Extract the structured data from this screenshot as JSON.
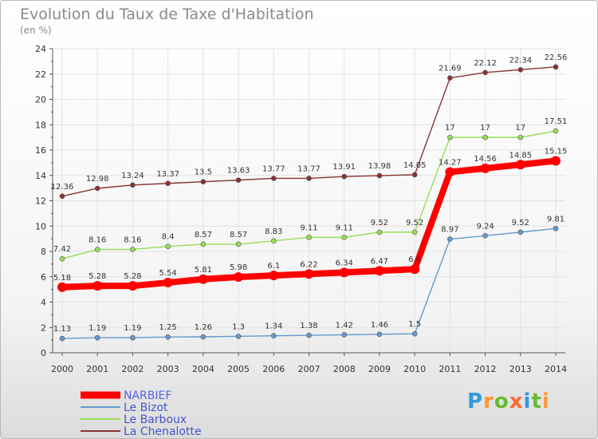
{
  "chart_data": {
    "type": "line",
    "title": "Evolution du Taux de Taxe d'Habitation",
    "subtitle": "(en %)",
    "x": [
      2000,
      2001,
      2002,
      2003,
      2004,
      2005,
      2006,
      2007,
      2008,
      2009,
      2010,
      2011,
      2012,
      2013,
      2014
    ],
    "ylim": [
      0,
      24
    ],
    "yticks": [
      0,
      2,
      4,
      6,
      8,
      10,
      12,
      14,
      16,
      18,
      20,
      22,
      24
    ],
    "grid": true,
    "legend": "bottom-left",
    "series": [
      {
        "name": "NARBIEF",
        "color": "#ff0000",
        "values": [
          5.18,
          5.28,
          5.28,
          5.54,
          5.81,
          5.98,
          6.1,
          6.22,
          6.34,
          6.47,
          6.6,
          14.27,
          14.56,
          14.85,
          15.15
        ],
        "labels": [
          "5.18",
          "5.28",
          "5.28",
          "5.54",
          "5.81",
          "5.98",
          "6.1",
          "6.22",
          "6.34",
          "6.47",
          "6.6",
          "14.27",
          "14.56",
          "14.85",
          "15.15"
        ]
      },
      {
        "name": "Le Bizot",
        "color": "#6699cc",
        "values": [
          1.13,
          1.19,
          1.19,
          1.25,
          1.26,
          1.3,
          1.34,
          1.38,
          1.42,
          1.46,
          1.5,
          8.97,
          9.24,
          9.52,
          9.81
        ],
        "labels": [
          "1.13",
          "1.19",
          "1.19",
          "1.25",
          "1.26",
          "1.3",
          "1.34",
          "1.38",
          "1.42",
          "1.46",
          "1.5",
          "8.97",
          "9.24",
          "9.52",
          "9.81"
        ]
      },
      {
        "name": "Le Barboux",
        "color": "#99dd55",
        "values": [
          7.42,
          8.16,
          8.16,
          8.4,
          8.57,
          8.57,
          8.83,
          9.11,
          9.11,
          9.52,
          9.52,
          17,
          17,
          17,
          17.51
        ],
        "labels": [
          "7.42",
          "8.16",
          "8.16",
          "8.4",
          "8.57",
          "8.57",
          "8.83",
          "9.11",
          "9.11",
          "9.52",
          "9.52",
          "17",
          "17",
          "17",
          "17.51"
        ]
      },
      {
        "name": "La Chenalotte",
        "color": "#883333",
        "values": [
          12.36,
          12.98,
          13.24,
          13.37,
          13.5,
          13.63,
          13.77,
          13.77,
          13.91,
          13.98,
          14.05,
          21.69,
          22.12,
          22.34,
          22.56
        ],
        "labels": [
          "12.36",
          "12.98",
          "13.24",
          "13.37",
          "13.5",
          "13.63",
          "13.77",
          "13.77",
          "13.91",
          "13.98",
          "14.05",
          "21.69",
          "22.12",
          "22.34",
          "22.56"
        ]
      }
    ]
  },
  "legend_items": [
    "NARBIEF",
    "Le Bizot",
    "Le Barboux",
    "La Chenalotte"
  ],
  "logo": {
    "text": "Proxiti",
    "letters": [
      "P",
      "r",
      "o",
      "x",
      "i",
      "t",
      "i"
    ],
    "colors": [
      "#3399dd",
      "#ff9933",
      "#66bb33",
      "#ff6633",
      "#3399dd",
      "#66bb33",
      "#ff9933"
    ]
  }
}
